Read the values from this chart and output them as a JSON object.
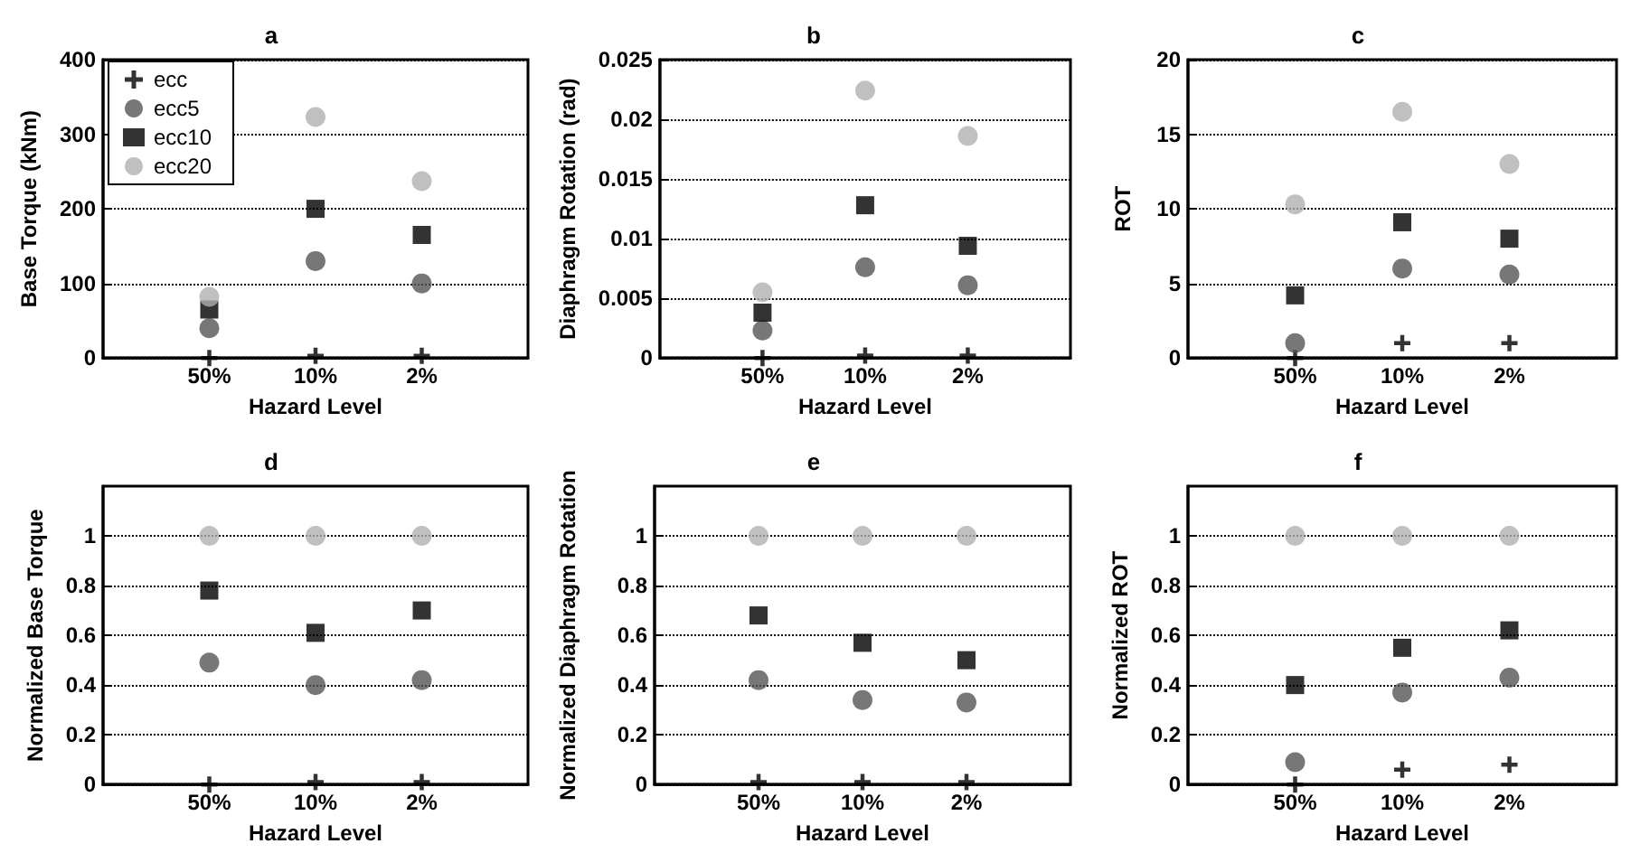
{
  "chart_data": [
    {
      "type": "scatter",
      "title": "a",
      "xlabel": "Hazard Level",
      "ylabel": "Base Torque (kNm)",
      "categories": [
        "50%",
        "10%",
        "2%"
      ],
      "ylim": [
        0,
        400
      ],
      "yticks": [
        0,
        100,
        200,
        300,
        400
      ],
      "grid": "y",
      "legend": "top left",
      "series": [
        {
          "name": "ecc",
          "color": "#000000",
          "marker": "cross",
          "values": [
            0,
            3,
            3
          ]
        },
        {
          "name": "ecc5",
          "color": "#555555",
          "marker": "circle",
          "values": [
            40,
            130,
            100
          ]
        },
        {
          "name": "ecc10",
          "color": "#000000",
          "marker": "square",
          "values": [
            65,
            200,
            165
          ]
        },
        {
          "name": "ecc20",
          "color": "#b0b0b0",
          "marker": "circle",
          "values": [
            82,
            323,
            237
          ]
        }
      ]
    },
    {
      "type": "scatter",
      "title": "b",
      "xlabel": "Hazard Level",
      "ylabel": "Diaphragm Rotation (rad)",
      "categories": [
        "50%",
        "10%",
        "2%"
      ],
      "ylim": [
        0,
        0.025
      ],
      "yticks": [
        0,
        0.005,
        0.01,
        0.015,
        0.02,
        0.025
      ],
      "grid": "y",
      "series": [
        {
          "color": "#000000",
          "marker": "cross",
          "values": [
            0,
            0.0002,
            0.0002
          ]
        },
        {
          "color": "#555555",
          "marker": "circle",
          "values": [
            0.0023,
            0.0076,
            0.0061
          ]
        },
        {
          "color": "#000000",
          "marker": "square",
          "values": [
            0.0038,
            0.0128,
            0.0094
          ]
        },
        {
          "color": "#b0b0b0",
          "marker": "circle",
          "values": [
            0.0055,
            0.0224,
            0.0186
          ]
        }
      ]
    },
    {
      "type": "scatter",
      "title": "c",
      "xlabel": "Hazard Level",
      "ylabel": "ROT",
      "categories": [
        "50%",
        "10%",
        "2%"
      ],
      "ylim": [
        0,
        20
      ],
      "yticks": [
        0,
        5,
        10,
        15,
        20
      ],
      "grid": "y",
      "series": [
        {
          "color": "#000000",
          "marker": "cross",
          "values": [
            0,
            1,
            1
          ]
        },
        {
          "color": "#555555",
          "marker": "circle",
          "values": [
            1,
            6,
            5.6
          ]
        },
        {
          "color": "#000000",
          "marker": "square",
          "values": [
            4.2,
            9.1,
            8
          ]
        },
        {
          "color": "#b0b0b0",
          "marker": "circle",
          "values": [
            10.3,
            16.5,
            13
          ]
        }
      ]
    },
    {
      "type": "scatter",
      "title": "d",
      "xlabel": "Hazard Level",
      "ylabel": "Normalized Base Torque",
      "categories": [
        "50%",
        "10%",
        "2%"
      ],
      "ylim": [
        0,
        1.2
      ],
      "yticks": [
        0,
        0.2,
        0.4,
        0.6,
        0.8,
        1
      ],
      "grid": "y",
      "series": [
        {
          "color": "#000000",
          "marker": "cross",
          "values": [
            0,
            0.01,
            0.01
          ]
        },
        {
          "color": "#555555",
          "marker": "circle",
          "values": [
            0.49,
            0.4,
            0.42
          ]
        },
        {
          "color": "#000000",
          "marker": "square",
          "values": [
            0.78,
            0.61,
            0.7
          ]
        },
        {
          "color": "#b0b0b0",
          "marker": "circle",
          "values": [
            1,
            1,
            1
          ]
        }
      ]
    },
    {
      "type": "scatter",
      "title": "e",
      "xlabel": "Hazard Level",
      "ylabel": "Normalized Diaphragm Rotation",
      "categories": [
        "50%",
        "10%",
        "2%"
      ],
      "ylim": [
        0,
        1.2
      ],
      "yticks": [
        0,
        0.2,
        0.4,
        0.6,
        0.8,
        1
      ],
      "grid": "y",
      "series": [
        {
          "color": "#000000",
          "marker": "cross",
          "values": [
            0.01,
            0.01,
            0.01
          ]
        },
        {
          "color": "#555555",
          "marker": "circle",
          "values": [
            0.42,
            0.34,
            0.33
          ]
        },
        {
          "color": "#000000",
          "marker": "square",
          "values": [
            0.68,
            0.57,
            0.5
          ]
        },
        {
          "color": "#b0b0b0",
          "marker": "circle",
          "values": [
            1,
            1,
            1
          ]
        }
      ]
    },
    {
      "type": "scatter",
      "title": "f",
      "xlabel": "Hazard Level",
      "ylabel": "Normalized ROT",
      "categories": [
        "50%",
        "10%",
        "2%"
      ],
      "ylim": [
        0,
        1.2
      ],
      "yticks": [
        0,
        0.2,
        0.4,
        0.6,
        0.8,
        1
      ],
      "grid": "y",
      "series": [
        {
          "color": "#000000",
          "marker": "cross",
          "values": [
            0,
            0.06,
            0.08
          ]
        },
        {
          "color": "#555555",
          "marker": "circle",
          "values": [
            0.09,
            0.37,
            0.43
          ]
        },
        {
          "color": "#000000",
          "marker": "square",
          "values": [
            0.4,
            0.55,
            0.62
          ]
        },
        {
          "color": "#b0b0b0",
          "marker": "circle",
          "values": [
            1,
            1,
            1
          ]
        }
      ]
    }
  ]
}
